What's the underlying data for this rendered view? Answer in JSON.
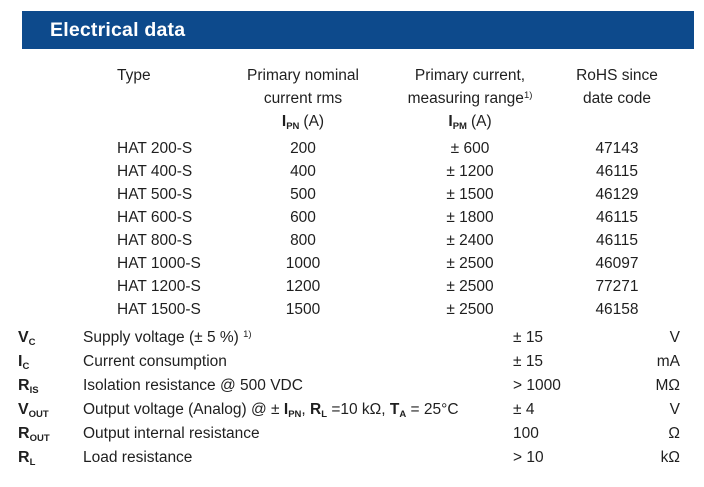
{
  "title": "Electrical data",
  "colors": {
    "header_bar": "#0D4A8C",
    "header_text": "#FFFFFF",
    "body_text": "#1F1F1F"
  },
  "table": {
    "headers": {
      "type": "Type",
      "primary_nominal_line1": "Primary nominal",
      "primary_nominal_line2": "current rms",
      "ipn_symbol": "I",
      "ipn_symbol_sub": "PN",
      "ipn_unit": "(A)",
      "primary_current_line1": "Primary current,",
      "primary_current_line2": "measuring range",
      "footnote_marker": "1)",
      "ipm_symbol": "I",
      "ipm_symbol_sub": "PM",
      "ipm_unit": "(A)",
      "rohs_line1": "RoHS since",
      "rohs_line2": "date code"
    },
    "rows": [
      {
        "type": "HAT 200-S",
        "ipn": "200",
        "ipm": "± 600",
        "rohs": "47143"
      },
      {
        "type": "HAT 400-S",
        "ipn": "400",
        "ipm": "± 1200",
        "rohs": "46115"
      },
      {
        "type": "HAT 500-S",
        "ipn": "500",
        "ipm": "± 1500",
        "rohs": "46129"
      },
      {
        "type": "HAT 600-S",
        "ipn": "600",
        "ipm": "± 1800",
        "rohs": "46115"
      },
      {
        "type": "HAT 800-S",
        "ipn": "800",
        "ipm": "± 2400",
        "rohs": "46115"
      },
      {
        "type": "HAT 1000-S",
        "ipn": "1000",
        "ipm": "± 2500",
        "rohs": "46097"
      },
      {
        "type": "HAT 1200-S",
        "ipn": "1200",
        "ipm": "± 2500",
        "rohs": "77271"
      },
      {
        "type": "HAT 1500-S",
        "ipn": "1500",
        "ipm": "± 2500",
        "rohs": "46158"
      }
    ]
  },
  "parameters": [
    {
      "symbol": "V",
      "symbol_sub": "C",
      "description": "Supply voltage (± 5 %) ",
      "description_sup": "1)",
      "value": "± 15",
      "unit": "V"
    },
    {
      "symbol": "I",
      "symbol_sub": "C",
      "description": "Current consumption",
      "value": "± 15",
      "unit": "mA"
    },
    {
      "symbol": "R",
      "symbol_sub": "IS",
      "description": "Isolation resistance @ 500 VDC",
      "value": "> 1000",
      "unit": "MΩ"
    },
    {
      "symbol": "V",
      "symbol_sub": "OUT",
      "desc": {
        "t1": "Output voltage (Analog) @ ± ",
        "s1": "I",
        "s1sub": "PN",
        "t2": ", ",
        "s2": "R",
        "s2sub": "L",
        "t3": " =10 kΩ, ",
        "s3": "T",
        "s3sub": "A",
        "t4": " = 25°C"
      },
      "value": "± 4",
      "unit": "V"
    },
    {
      "symbol": "R",
      "symbol_sub": "OUT",
      "description": "Output internal resistance",
      "value": "100",
      "unit": "Ω"
    },
    {
      "symbol": "R",
      "symbol_sub": "L",
      "description": "Load resistance",
      "value": "> 10",
      "unit": "kΩ"
    }
  ]
}
